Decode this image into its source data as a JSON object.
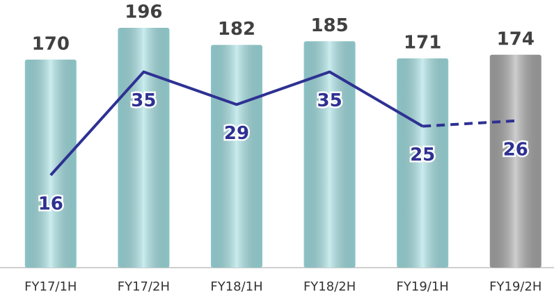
{
  "chart_data": {
    "type": "bar_line",
    "categories": [
      "FY17/1H",
      "FY17/2H",
      "FY18/1H",
      "FY18/2H",
      "FY19/1H",
      "FY19/2H"
    ],
    "series": [
      {
        "type": "bar",
        "values": [
          170,
          196,
          182,
          185,
          171,
          174
        ],
        "colors": [
          "#9fdde0",
          "#9fdde0",
          "#9fdde0",
          "#9fdde0",
          "#9fdde0",
          "#a6a6a6"
        ],
        "label_color": "#404040"
      },
      {
        "type": "line",
        "axis": "y2",
        "values": [
          16,
          35,
          29,
          35,
          25,
          26
        ],
        "color": "#2e3192",
        "dashed_from": 4
      }
    ],
    "ylim": [
      0,
      200
    ],
    "y2lim": [
      -1,
      44
    ]
  }
}
